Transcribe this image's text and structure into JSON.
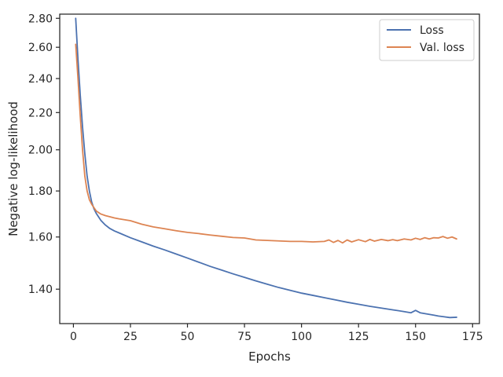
{
  "chart_data": {
    "type": "line",
    "title": "",
    "xlabel": "Epochs",
    "ylabel": "Negative log-likelihood",
    "xlim": [
      -6,
      178
    ],
    "ylim": [
      1.282,
      2.83
    ],
    "yscale": "log",
    "grid": false,
    "legend_position": "top-right",
    "x_ticks": [
      0,
      25,
      50,
      75,
      100,
      125,
      150,
      175
    ],
    "x_tick_labels": [
      "0",
      "25",
      "50",
      "75",
      "100",
      "125",
      "150",
      "175"
    ],
    "y_ticks": [
      1.4,
      1.6,
      1.8,
      2.0,
      2.2,
      2.4,
      2.6,
      2.8
    ],
    "y_tick_labels": [
      "1.40",
      "1.60",
      "1.80",
      "2.00",
      "2.20",
      "2.40",
      "2.60",
      "2.80"
    ],
    "series": [
      {
        "name": "Loss",
        "color": "#4c72b0",
        "x": [
          1,
          2,
          3,
          4,
          5,
          6,
          7,
          8,
          9,
          10,
          12,
          14,
          16,
          18,
          20,
          25,
          30,
          35,
          40,
          45,
          50,
          55,
          60,
          65,
          70,
          75,
          80,
          85,
          90,
          95,
          100,
          105,
          110,
          115,
          120,
          125,
          130,
          135,
          140,
          145,
          148,
          150,
          152,
          155,
          158,
          160,
          162,
          165,
          168
        ],
        "y": [
          2.8,
          2.52,
          2.3,
          2.12,
          1.98,
          1.87,
          1.8,
          1.75,
          1.72,
          1.7,
          1.67,
          1.65,
          1.635,
          1.625,
          1.617,
          1.597,
          1.58,
          1.563,
          1.548,
          1.532,
          1.516,
          1.5,
          1.484,
          1.47,
          1.456,
          1.443,
          1.43,
          1.418,
          1.406,
          1.396,
          1.386,
          1.378,
          1.37,
          1.362,
          1.354,
          1.347,
          1.34,
          1.334,
          1.328,
          1.322,
          1.318,
          1.326,
          1.318,
          1.314,
          1.31,
          1.307,
          1.305,
          1.302,
          1.303
        ]
      },
      {
        "name": "Val. loss",
        "color": "#dd8452",
        "x": [
          1,
          2,
          3,
          4,
          5,
          6,
          7,
          8,
          9,
          10,
          12,
          14,
          16,
          18,
          20,
          25,
          30,
          35,
          40,
          45,
          50,
          55,
          60,
          65,
          70,
          75,
          80,
          85,
          90,
          95,
          100,
          105,
          110,
          112,
          114,
          116,
          118,
          120,
          122,
          125,
          128,
          130,
          132,
          135,
          138,
          140,
          142,
          145,
          148,
          150,
          152,
          154,
          156,
          158,
          160,
          162,
          164,
          166,
          168
        ],
        "y": [
          2.62,
          2.4,
          2.18,
          2.0,
          1.87,
          1.8,
          1.76,
          1.74,
          1.725,
          1.71,
          1.697,
          1.69,
          1.685,
          1.68,
          1.676,
          1.668,
          1.653,
          1.642,
          1.634,
          1.626,
          1.619,
          1.614,
          1.608,
          1.603,
          1.598,
          1.596,
          1.588,
          1.586,
          1.584,
          1.582,
          1.582,
          1.58,
          1.582,
          1.588,
          1.578,
          1.586,
          1.576,
          1.588,
          1.58,
          1.589,
          1.581,
          1.59,
          1.583,
          1.59,
          1.585,
          1.589,
          1.585,
          1.592,
          1.588,
          1.595,
          1.59,
          1.597,
          1.592,
          1.597,
          1.596,
          1.602,
          1.595,
          1.6,
          1.592
        ]
      }
    ]
  }
}
